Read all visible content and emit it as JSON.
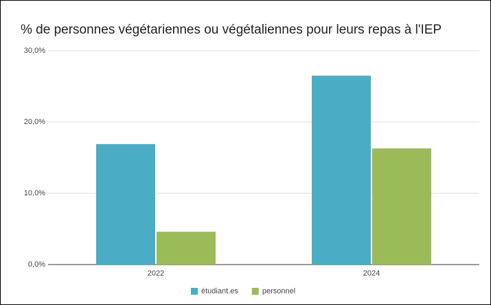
{
  "chart_data": {
    "type": "bar",
    "title": "% de personnes végétariennes ou végétaliennes pour leurs repas à l'IEP",
    "categories": [
      "2022",
      "2024"
    ],
    "series": [
      {
        "name": "étudiant.es",
        "color": "#4bacc6",
        "values": [
          16.9,
          26.5
        ]
      },
      {
        "name": "personnel",
        "color": "#9bbb59",
        "values": [
          4.6,
          16.3
        ]
      }
    ],
    "ylim": [
      0,
      30
    ],
    "yticks": [
      {
        "value": 0,
        "label": "0,0%"
      },
      {
        "value": 10,
        "label": "10,0%"
      },
      {
        "value": 20,
        "label": "20,0%"
      },
      {
        "value": 30,
        "label": "30,0%"
      }
    ],
    "grid": true,
    "legend": "bottom"
  }
}
